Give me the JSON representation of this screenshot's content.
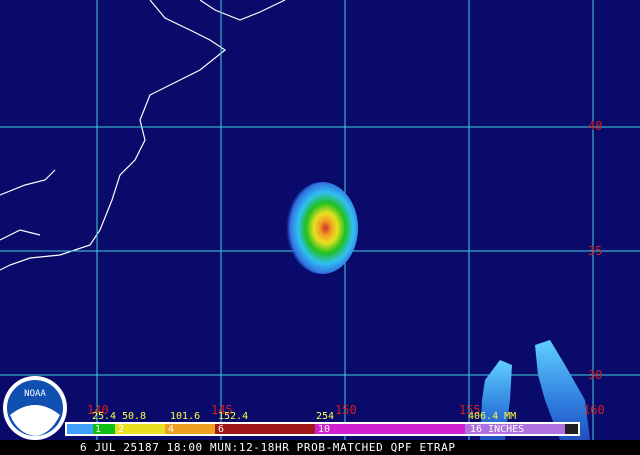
{
  "map": {
    "lat_labels": [
      "40",
      "35",
      "30"
    ],
    "lon_labels": [
      "140",
      "145",
      "150",
      "155",
      "160"
    ],
    "logo": "NOAA"
  },
  "legend": {
    "mm_labels": [
      "25.4",
      "50.8",
      "101.6",
      "152.4",
      "254",
      "406.4 MM"
    ],
    "inch_labels": [
      "1",
      "2",
      "4",
      "6",
      "10",
      "16 INCHES"
    ]
  },
  "caption": "6 JUL 25187 18:00 MUN:12-18HR PROB-MATCHED QPF ETRAP"
}
